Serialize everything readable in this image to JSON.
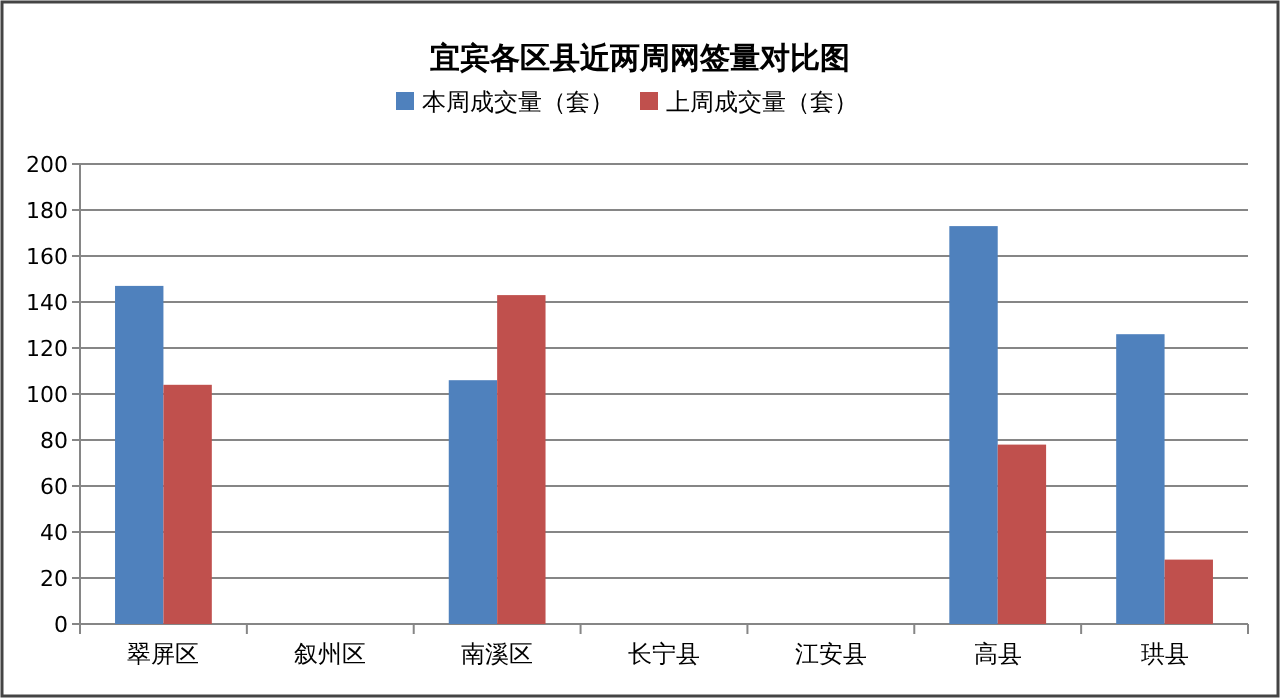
{
  "chart_data": {
    "type": "bar",
    "title": "宜宾各区县近两周网签量对比图",
    "categories": [
      "翠屏区",
      "叙州区",
      "南溪区",
      "长宁县",
      "江安县",
      "高县",
      "珙县"
    ],
    "series": [
      {
        "name": "本周成交量（套）",
        "color": "#4f81bd",
        "values": [
          147,
          null,
          106,
          null,
          null,
          173,
          126
        ]
      },
      {
        "name": "上周成交量（套）",
        "color": "#c0504d",
        "values": [
          104,
          null,
          143,
          null,
          null,
          78,
          28
        ]
      }
    ],
    "ylim": [
      0,
      200
    ],
    "yticks": [
      0,
      20,
      40,
      60,
      80,
      100,
      120,
      140,
      160,
      180,
      200
    ],
    "grid": "y",
    "legend": "top"
  }
}
